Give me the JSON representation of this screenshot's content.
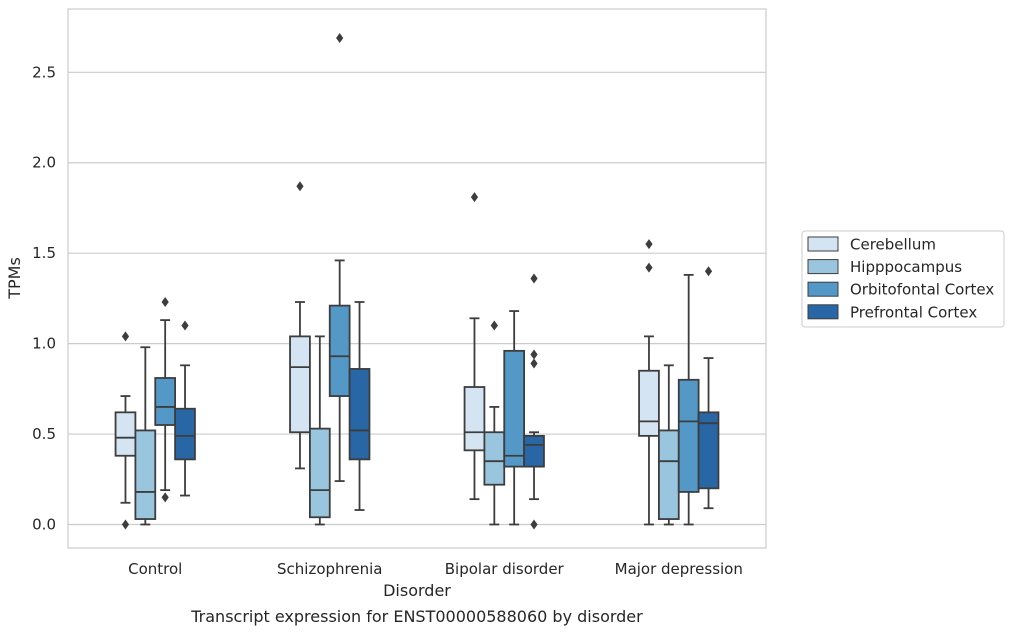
{
  "chart_data": {
    "type": "box",
    "title": "",
    "caption": "Transcript expression for ENST00000588060 by disorder",
    "xlabel": "Disorder",
    "ylabel": "TPMs",
    "ylim": [
      -0.13,
      2.85
    ],
    "yticks": [
      0.0,
      0.5,
      1.0,
      1.5,
      2.0,
      2.5
    ],
    "ytick_labels": [
      "0.0",
      "0.5",
      "1.0",
      "1.5",
      "2.0",
      "2.5"
    ],
    "grid": "horizontal",
    "legend_position": "right",
    "categories": [
      "Control",
      "Schizophrenia",
      "Bipolar disorder",
      "Major depression"
    ],
    "series": [
      {
        "name": "Cerebellum",
        "color": "#d4e4f3",
        "boxes": [
          {
            "whislo": 0.12,
            "q1": 0.38,
            "med": 0.48,
            "q3": 0.62,
            "whishi": 0.71,
            "fliers": [
              1.04,
              0.0
            ]
          },
          {
            "whislo": 0.31,
            "q1": 0.51,
            "med": 0.87,
            "q3": 1.04,
            "whishi": 1.23,
            "fliers": [
              1.87
            ]
          },
          {
            "whislo": 0.14,
            "q1": 0.41,
            "med": 0.51,
            "q3": 0.76,
            "whishi": 1.14,
            "fliers": [
              1.81
            ]
          },
          {
            "whislo": 0.0,
            "q1": 0.49,
            "med": 0.57,
            "q3": 0.85,
            "whishi": 1.04,
            "fliers": [
              1.55,
              1.42
            ]
          }
        ]
      },
      {
        "name": "Hipppocampus",
        "color": "#9ac5df",
        "boxes": [
          {
            "whislo": 0.0,
            "q1": 0.03,
            "med": 0.18,
            "q3": 0.52,
            "whishi": 0.98,
            "fliers": []
          },
          {
            "whislo": 0.0,
            "q1": 0.04,
            "med": 0.19,
            "q3": 0.53,
            "whishi": 1.04,
            "fliers": []
          },
          {
            "whislo": 0.0,
            "q1": 0.22,
            "med": 0.35,
            "q3": 0.51,
            "whishi": 0.65,
            "fliers": [
              1.1
            ]
          },
          {
            "whislo": 0.0,
            "q1": 0.03,
            "med": 0.35,
            "q3": 0.52,
            "whishi": 0.88,
            "fliers": []
          }
        ]
      },
      {
        "name": "Orbitofontal Cortex",
        "color": "#5398c6",
        "boxes": [
          {
            "whislo": 0.19,
            "q1": 0.55,
            "med": 0.65,
            "q3": 0.81,
            "whishi": 1.13,
            "fliers": [
              1.23,
              0.15
            ]
          },
          {
            "whislo": 0.24,
            "q1": 0.71,
            "med": 0.93,
            "q3": 1.21,
            "whishi": 1.46,
            "fliers": [
              2.69
            ]
          },
          {
            "whislo": 0.0,
            "q1": 0.32,
            "med": 0.38,
            "q3": 0.96,
            "whishi": 1.18,
            "fliers": []
          },
          {
            "whislo": 0.0,
            "q1": 0.18,
            "med": 0.57,
            "q3": 0.8,
            "whishi": 1.38,
            "fliers": []
          }
        ]
      },
      {
        "name": "Prefrontal Cortex",
        "color": "#2866a5",
        "boxes": [
          {
            "whislo": 0.16,
            "q1": 0.36,
            "med": 0.49,
            "q3": 0.64,
            "whishi": 0.88,
            "fliers": [
              1.1
            ]
          },
          {
            "whislo": 0.08,
            "q1": 0.36,
            "med": 0.52,
            "q3": 0.86,
            "whishi": 1.23,
            "fliers": []
          },
          {
            "whislo": 0.14,
            "q1": 0.32,
            "med": 0.44,
            "q3": 0.49,
            "whishi": 0.51,
            "fliers": [
              1.36,
              0.94,
              0.89,
              0.0
            ]
          },
          {
            "whislo": 0.09,
            "q1": 0.2,
            "med": 0.56,
            "q3": 0.62,
            "whishi": 0.92,
            "fliers": [
              1.4
            ]
          }
        ]
      }
    ]
  }
}
